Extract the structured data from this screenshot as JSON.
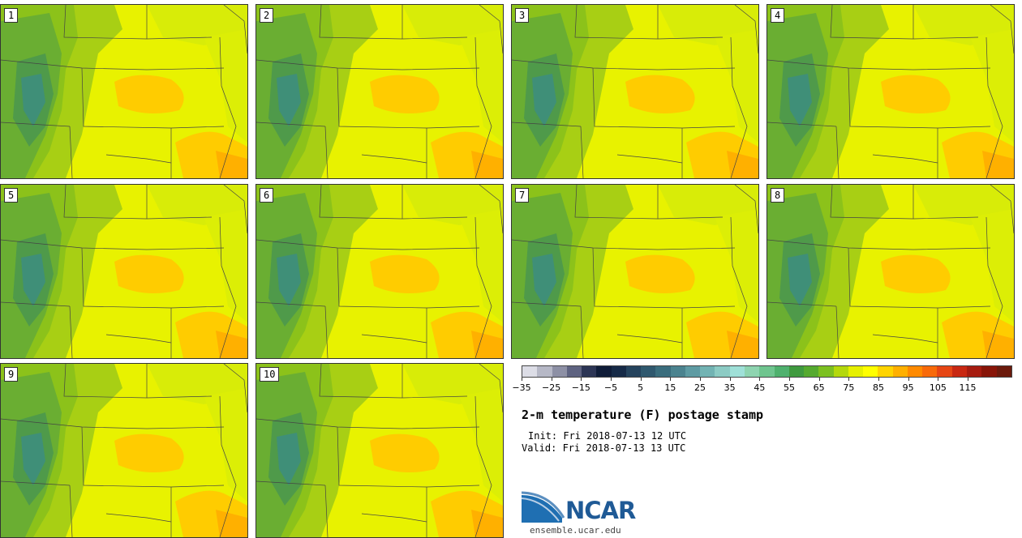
{
  "stamps": [
    "1",
    "2",
    "3",
    "4",
    "5",
    "6",
    "7",
    "8",
    "9",
    "10"
  ],
  "colorbar": {
    "colors": [
      "#dcdde6",
      "#b6b8c6",
      "#8d90a5",
      "#5e6381",
      "#2c3555",
      "#0f1c38",
      "#162a47",
      "#25435d",
      "#2f586e",
      "#3a6d7d",
      "#4b838f",
      "#5e9ba3",
      "#72b3b3",
      "#8ccbc4",
      "#9fe0d8",
      "#8ed4b0",
      "#6fc58f",
      "#4fb16e",
      "#3f9a3f",
      "#55aa2f",
      "#7cc020",
      "#b4d80c",
      "#e6f000",
      "#ffff00",
      "#ffd400",
      "#ffb000",
      "#ff8a00",
      "#f86a0a",
      "#e64614",
      "#c82812",
      "#a61c10",
      "#881508",
      "#6b1a0c"
    ],
    "tick_labels": [
      "−35",
      "−25",
      "−15",
      "−5",
      "5",
      "15",
      "25",
      "35",
      "45",
      "55",
      "65",
      "75",
      "85",
      "95",
      "105",
      "115"
    ]
  },
  "title": "2-m temperature (F) postage stamp",
  "init": "Init: Fri 2018-07-13 12 UTC",
  "valid": "Valid: Fri 2018-07-13 13 UTC",
  "logo_text": "NCAR",
  "site": "ensemble.ucar.edu"
}
